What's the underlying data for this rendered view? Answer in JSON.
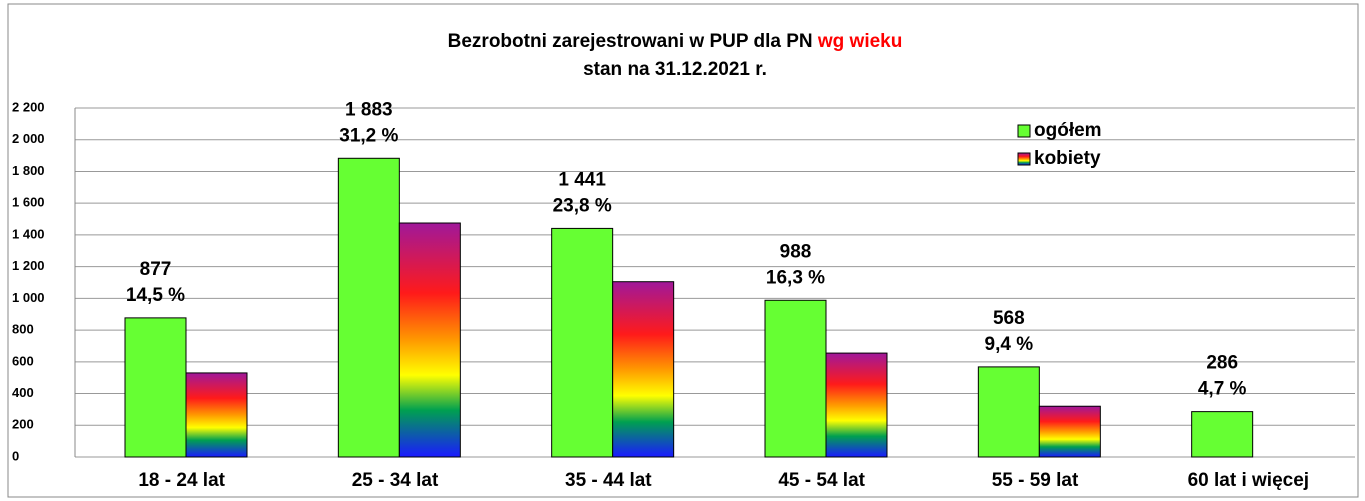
{
  "chart_data": {
    "type": "bar",
    "title": "Bezrobotni zarejestrowani w PUP dla PN",
    "title_highlight": "wg wieku",
    "title_highlight_color": "#ff0000",
    "subtitle": "stan  na 31.12.2021 r.",
    "categories": [
      "18 - 24 lat",
      "25 - 34 lat",
      "35 - 44 lat",
      "45 - 54 lat",
      "55 - 59 lat",
      "60 lat i więcej"
    ],
    "series": [
      {
        "name": "ogółem",
        "color": "#66ff33",
        "values": [
          877,
          1883,
          1441,
          988,
          568,
          286
        ],
        "value_labels": [
          "877",
          "1 883",
          "1 441",
          "988",
          "568",
          "286"
        ],
        "share_values": [
          14.5,
          31.2,
          23.8,
          16.3,
          9.4,
          4.7
        ],
        "share_labels": [
          "14,5 %",
          "31,2 %",
          "23,8 %",
          "16,3 %",
          "9,4 %",
          "4,7 %"
        ]
      },
      {
        "name": "kobiety",
        "color": "#a0189a",
        "values": [
          530,
          1475,
          1105,
          655,
          320,
          null
        ]
      }
    ],
    "ylim": [
      0,
      2200
    ],
    "yticks": [
      0,
      200,
      400,
      600,
      800,
      {
        "value": 1000,
        "label": "1 000"
      },
      {
        "value": 1200,
        "label": "1 200"
      },
      {
        "value": 1400,
        "label": "1 400"
      },
      {
        "value": 1600,
        "label": "1 600"
      },
      {
        "value": 1800,
        "label": "1 800"
      },
      {
        "value": 2000,
        "label": "2 000"
      },
      {
        "value": 2200,
        "label": "2 200"
      }
    ],
    "grid": true,
    "legend": "top-right"
  }
}
